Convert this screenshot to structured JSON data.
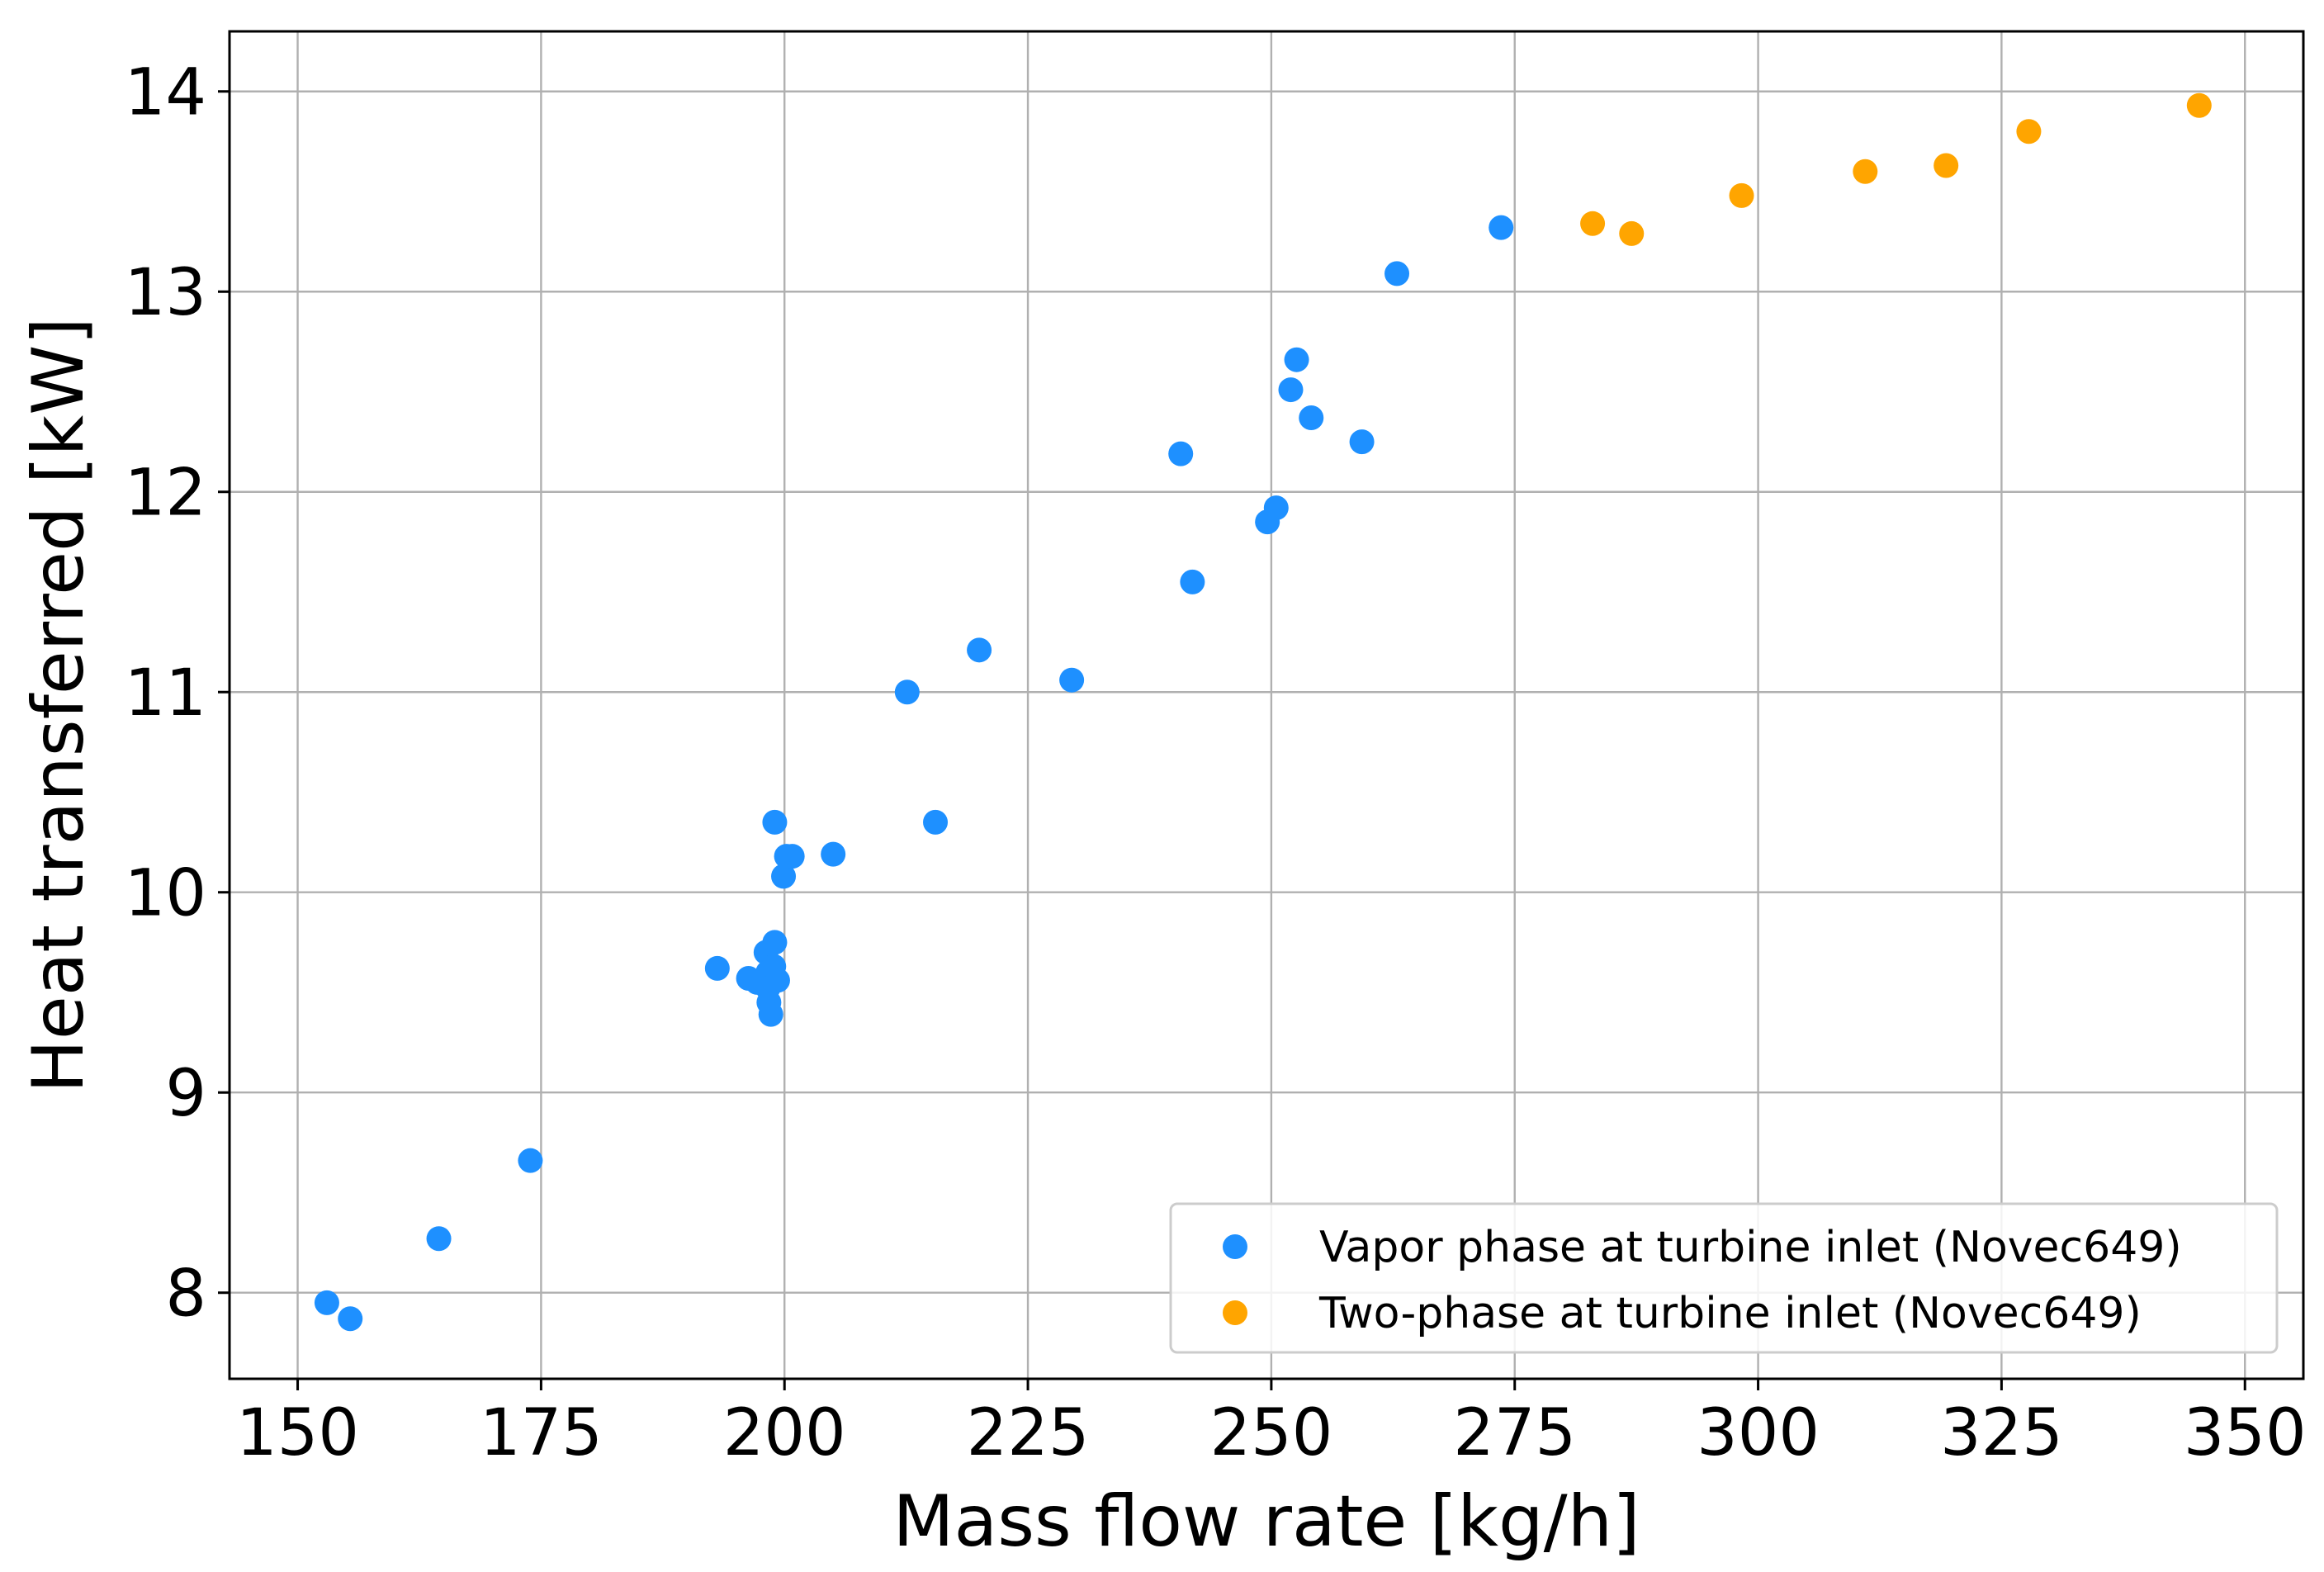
{
  "chart_data": {
    "type": "scatter",
    "title": "",
    "xlabel": "Mass flow rate [kg/h]",
    "ylabel": "Heat transferred [kW]",
    "xlim": [
      143,
      356
    ],
    "ylim": [
      7.57,
      14.3
    ],
    "xticks": [
      150,
      175,
      200,
      225,
      250,
      275,
      300,
      325,
      350
    ],
    "yticks": [
      8,
      9,
      10,
      11,
      12,
      13,
      14
    ],
    "grid": true,
    "legend_position": "bottom-right",
    "series": [
      {
        "name": "Vapor phase at turbine inlet (Novec649)",
        "color": "#1e90ff",
        "points": [
          [
            153.0,
            7.95
          ],
          [
            155.4,
            7.87
          ],
          [
            164.5,
            8.27
          ],
          [
            173.9,
            8.66
          ],
          [
            193.1,
            9.62
          ],
          [
            196.3,
            9.57
          ],
          [
            197.2,
            9.55
          ],
          [
            198.1,
            9.7
          ],
          [
            198.3,
            9.6
          ],
          [
            198.3,
            9.52
          ],
          [
            198.4,
            9.45
          ],
          [
            198.6,
            9.39
          ],
          [
            198.9,
            9.63
          ],
          [
            199.0,
            9.75
          ],
          [
            199.3,
            9.56
          ],
          [
            199.0,
            10.35
          ],
          [
            199.9,
            10.08
          ],
          [
            200.2,
            10.18
          ],
          [
            200.8,
            10.18
          ],
          [
            205.0,
            10.19
          ],
          [
            212.6,
            11.0
          ],
          [
            215.5,
            10.35
          ],
          [
            220.0,
            11.21
          ],
          [
            229.5,
            11.06
          ],
          [
            240.7,
            12.19
          ],
          [
            241.9,
            11.55
          ],
          [
            249.6,
            11.85
          ],
          [
            250.5,
            11.92
          ],
          [
            252.0,
            12.51
          ],
          [
            252.6,
            12.66
          ],
          [
            254.1,
            12.37
          ],
          [
            259.3,
            12.25
          ],
          [
            262.9,
            13.09
          ],
          [
            273.6,
            13.32
          ]
        ]
      },
      {
        "name": "Two-phase at turbine inlet (Novec649)",
        "color": "#ffa500",
        "points": [
          [
            283.0,
            13.34
          ],
          [
            287.0,
            13.29
          ],
          [
            298.3,
            13.48
          ],
          [
            311.0,
            13.6
          ],
          [
            319.3,
            13.63
          ],
          [
            327.8,
            13.8
          ],
          [
            345.3,
            13.93
          ]
        ]
      }
    ]
  }
}
